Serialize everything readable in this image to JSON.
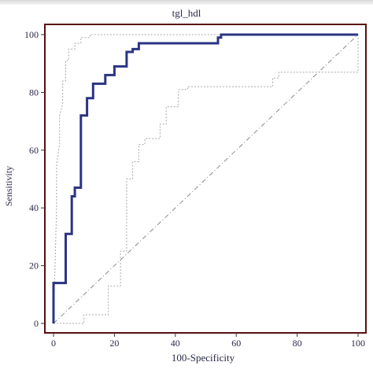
{
  "chart_data": {
    "type": "line",
    "title": "tgl_hdl",
    "xlabel": "100-Specificity",
    "ylabel": "Sensitivity",
    "xlim": [
      0,
      100
    ],
    "ylim": [
      0,
      100
    ],
    "x_ticks": [
      0,
      20,
      40,
      60,
      80,
      100
    ],
    "y_ticks": [
      0,
      20,
      40,
      60,
      80,
      100
    ],
    "grid": false,
    "legend": "none",
    "colors": {
      "roc": "#2b3483",
      "band": "#a8a8a8",
      "reference": "#8a8a8a",
      "frame": "#5a0f0f"
    },
    "series": [
      {
        "role": "roc",
        "x": [
          0,
          0,
          4,
          4,
          6,
          6,
          7,
          7,
          9,
          9,
          11,
          11,
          13,
          13,
          17,
          17,
          20,
          20,
          24,
          24,
          26,
          26,
          28,
          28,
          54,
          54,
          55,
          55,
          100
        ],
        "y": [
          0,
          14,
          14,
          31,
          31,
          44,
          44,
          47,
          47,
          72,
          72,
          78,
          78,
          83,
          83,
          86,
          86,
          89,
          89,
          94,
          94,
          95,
          95,
          97,
          97,
          99,
          99,
          100,
          100
        ]
      },
      {
        "role": "upper-confidence-band",
        "x": [
          0,
          1,
          1,
          2,
          2,
          3,
          3,
          4,
          4,
          5,
          5,
          7,
          7,
          9,
          9,
          12,
          12,
          100
        ],
        "y": [
          0,
          40,
          55,
          62,
          72,
          76,
          84,
          84,
          91,
          91,
          95,
          95,
          97,
          97,
          99,
          99,
          100,
          100
        ]
      },
      {
        "role": "lower-confidence-band",
        "x": [
          0,
          10,
          10,
          18,
          18,
          22,
          22,
          24,
          24,
          26,
          26,
          28,
          28,
          30,
          30,
          35,
          35,
          37,
          37,
          41,
          41,
          44,
          44,
          72,
          72,
          74,
          74,
          100,
          100
        ],
        "y": [
          0,
          0,
          3,
          3,
          13,
          13,
          25,
          25,
          50,
          50,
          56,
          56,
          62,
          62,
          64,
          64,
          69,
          69,
          75,
          75,
          81,
          81,
          82,
          82,
          85,
          85,
          87,
          87,
          100
        ]
      },
      {
        "role": "reference-diagonal",
        "x": [
          0,
          100
        ],
        "y": [
          0,
          100
        ]
      }
    ]
  }
}
